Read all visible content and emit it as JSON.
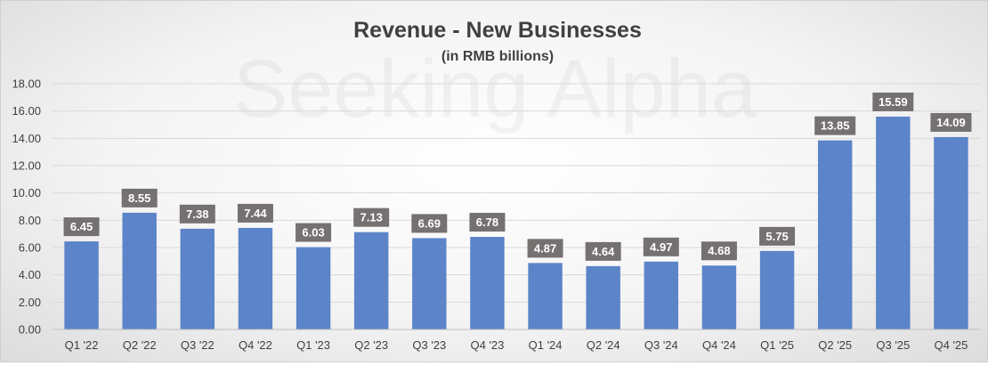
{
  "chart_data": {
    "type": "bar",
    "title": "Revenue - New Businesses",
    "subtitle": "(in RMB billions)",
    "watermark": "Seeking Alpha",
    "categories": [
      "Q1 '22",
      "Q2 '22",
      "Q3 '22",
      "Q4 '22",
      "Q1 '23",
      "Q2 '23",
      "Q3 '23",
      "Q4 '23",
      "Q1 '24",
      "Q2 '24",
      "Q3 '24",
      "Q4 '24",
      "Q1 '25",
      "Q2 '25",
      "Q3 '25",
      "Q4 '25"
    ],
    "values": [
      6.45,
      8.55,
      7.38,
      7.44,
      6.03,
      7.13,
      6.69,
      6.78,
      4.87,
      4.64,
      4.97,
      4.68,
      5.75,
      13.85,
      15.59,
      14.09
    ],
    "value_labels": [
      "6.45",
      "8.55",
      "7.38",
      "7.44",
      "6.03",
      "7.13",
      "6.69",
      "6.78",
      "4.87",
      "4.64",
      "4.97",
      "4.68",
      "5.75",
      "13.85",
      "15.59",
      "14.09"
    ],
    "ylim": [
      0,
      18
    ],
    "yticks": [
      "0.00",
      "2.00",
      "4.00",
      "6.00",
      "8.00",
      "10.00",
      "12.00",
      "14.00",
      "16.00",
      "18.00"
    ],
    "xlabel": "",
    "ylabel": "",
    "grid": true,
    "colors": {
      "bar": "#5b84c9",
      "label_bg": "#767171"
    }
  }
}
